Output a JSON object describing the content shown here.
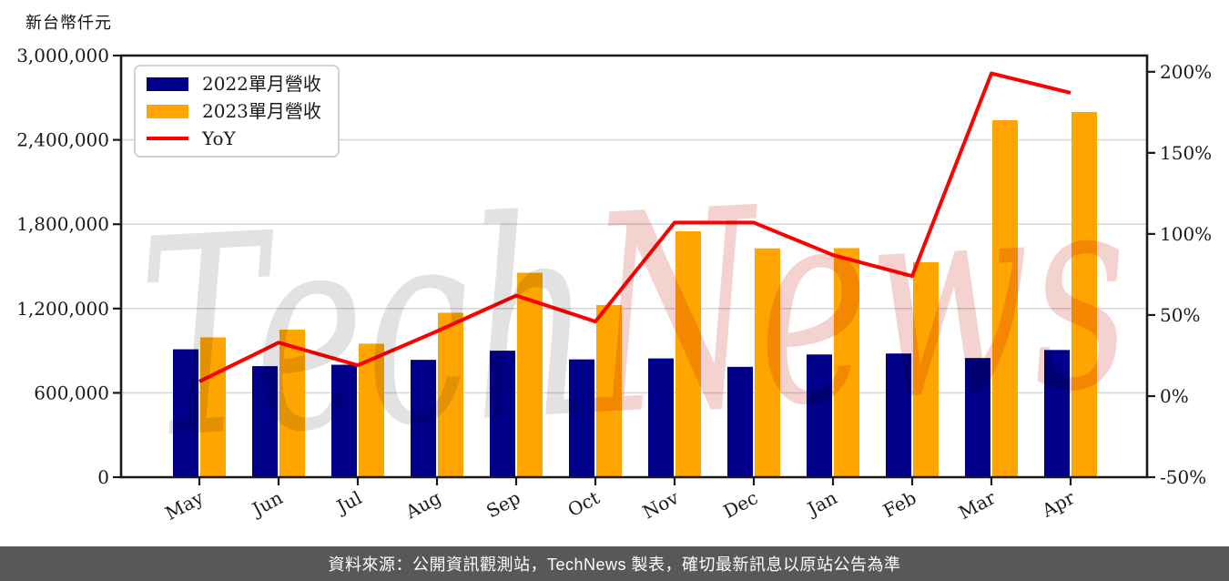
{
  "title": {
    "axis_unit_label": "新台幣仟元"
  },
  "legend": {
    "items": [
      {
        "label": "2022單月營收",
        "color": "#00008B",
        "kind": "bar"
      },
      {
        "label": "2023單月營收",
        "color": "#FFA500",
        "kind": "bar"
      },
      {
        "label": "YoY",
        "color": "#FF0000",
        "kind": "line"
      }
    ]
  },
  "watermark": {
    "part1": "Tech",
    "part1_color": "#e2e2e2",
    "part2": "News",
    "part2_color": "#f3d2d0"
  },
  "footer": {
    "text": "資料來源：公開資訊觀測站，TechNews 製表，確切最新訊息以原站公告為準",
    "background": "#57585A",
    "text_color": "#ffffff"
  },
  "chart_data": {
    "type": "bar",
    "categories": [
      "May",
      "Jun",
      "Jul",
      "Aug",
      "Sep",
      "Oct",
      "Nov",
      "Dec",
      "Jan",
      "Feb",
      "Mar",
      "Apr"
    ],
    "series": [
      {
        "name": "2022單月營收",
        "kind": "bar",
        "axis": "left",
        "color": "#00008B",
        "values": [
          910000,
          790000,
          800000,
          835000,
          900000,
          838000,
          845000,
          785000,
          873000,
          880000,
          848000,
          905000
        ]
      },
      {
        "name": "2023單月營收",
        "kind": "bar",
        "axis": "left",
        "color": "#FFA500",
        "values": [
          995000,
          1050000,
          950000,
          1170000,
          1455000,
          1225000,
          1750000,
          1628000,
          1630000,
          1530000,
          2540000,
          2598000
        ]
      },
      {
        "name": "YoY",
        "kind": "line",
        "axis": "right",
        "color": "#FF0000",
        "values": [
          9,
          33,
          19,
          40,
          62,
          46,
          107,
          107,
          87,
          74,
          199,
          187
        ]
      }
    ],
    "left_axis": {
      "ylim": [
        0,
        3000000
      ],
      "tick_values": [
        0,
        600000,
        1200000,
        1800000,
        2400000,
        3000000
      ],
      "tick_labels": [
        "0",
        "600,000",
        "1,200,000",
        "1,800,000",
        "2,400,000",
        "3,000,000"
      ]
    },
    "right_axis": {
      "ylim": [
        -50,
        210
      ],
      "tick_values": [
        -50,
        0,
        50,
        100,
        150,
        200
      ],
      "tick_labels": [
        "-50%",
        "0%",
        "50%",
        "100%",
        "150%",
        "200%"
      ]
    },
    "grid": "horizontal",
    "grid_color": "#d9d9d9",
    "legend_position": "upper-left"
  }
}
